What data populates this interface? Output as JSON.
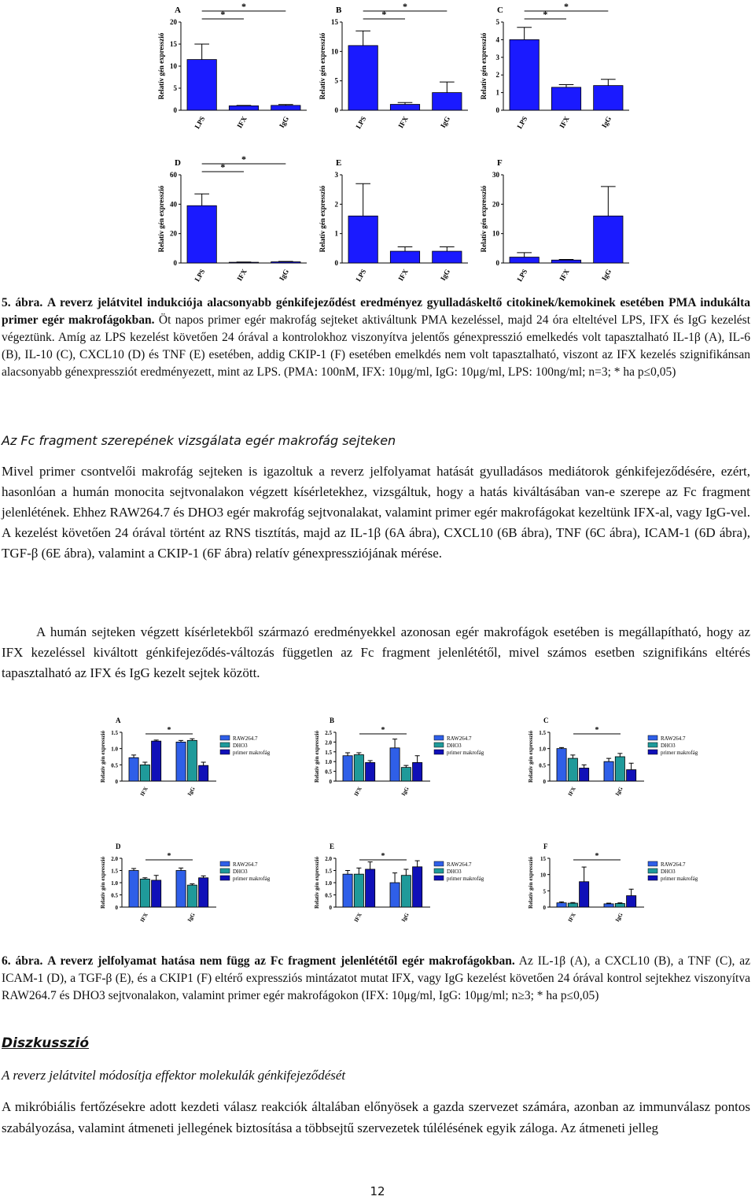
{
  "figure5": {
    "ylabel": "Relatív gén expresszió",
    "sig_mark": "*",
    "color": "#1a1aff",
    "categories": [
      "LPS",
      "IFX",
      "IgG"
    ],
    "panels": [
      {
        "label": "A",
        "ylim": [
          0,
          20
        ],
        "yticks": [
          0,
          5,
          10,
          15,
          20
        ],
        "values": [
          11.5,
          1,
          1.1
        ],
        "errors": [
          3.5,
          0.1,
          0.2
        ]
      },
      {
        "label": "B",
        "ylim": [
          0,
          15
        ],
        "yticks": [
          0,
          5,
          10,
          15
        ],
        "values": [
          11,
          1,
          3
        ],
        "errors": [
          2.5,
          0.3,
          1.8
        ]
      },
      {
        "label": "C",
        "ylim": [
          0,
          5
        ],
        "yticks": [
          0,
          1,
          2,
          3,
          4,
          5
        ],
        "values": [
          4,
          1.3,
          1.4
        ],
        "errors": [
          0.7,
          0.15,
          0.35
        ]
      },
      {
        "label": "D",
        "ylim": [
          0,
          60
        ],
        "yticks": [
          0,
          20,
          40,
          60
        ],
        "values": [
          39,
          0.5,
          0.8
        ],
        "errors": [
          8,
          0.2,
          0.3
        ]
      },
      {
        "label": "E",
        "ylim": [
          0,
          3
        ],
        "yticks": [
          0,
          1,
          2,
          3
        ],
        "values": [
          1.6,
          0.4,
          0.4
        ],
        "errors": [
          1.1,
          0.15,
          0.15
        ]
      },
      {
        "label": "F",
        "ylim": [
          0,
          30
        ],
        "yticks": [
          0,
          10,
          20,
          30
        ],
        "values": [
          2,
          1,
          16
        ],
        "errors": [
          1.5,
          0.2,
          10
        ]
      }
    ]
  },
  "caption5": {
    "label": "5. ábra.",
    "title": "A reverz jelátvitel indukciója alacsonyabb génkifejeződést eredményez gyulladáskeltő citokinek/kemokinek esetében PMA indukálta primer egér makrofágokban.",
    "text": "Öt napos primer egér makrofág sejteket aktiváltunk PMA kezeléssel, majd 24 óra elteltével LPS, IFX és IgG kezelést végeztünk. Amíg az LPS kezelést követően 24 órával a kontrolokhoz viszonyítva jelentős génexpresszió emelkedés volt tapasztalható IL-1β (A), IL-6 (B), IL-10 (C), CXCL10 (D) és TNF (E) esetében, addig CKIP-1 (F) esetében emelkdés nem volt tapasztalható, viszont az IFX kezelés szignifikánsan alacsonyabb génexpressziót eredményezett, mint az LPS. (PMA: 100nM, IFX: 10μg/ml, IgG: 10μg/ml, LPS: 100ng/ml; n=3; * ha p≤0,05)"
  },
  "section_heading": "Az Fc fragment szerepének vizsgálata egér makrofág sejteken",
  "paragraphs": [
    "Mivel primer csontvelői makrofág sejteken is igazoltuk a reverz jelfolyamat hatását gyulladásos mediátorok génkifejeződésére, ezért, hasonlóan a humán monocita sejtvonalakon végzett kísérletekhez, vizsgáltuk, hogy a hatás kiváltásában van-e szerepe az Fc fragment jelenlétének. Ehhez RAW264.7 és DHO3 egér makrofág sejtvonalakat, valamint primer egér makrofágokat kezeltünk IFX-al, vagy IgG-vel. A kezelést követően 24 órával történt az RNS tisztítás, majd az IL-1β (6A ábra), CXCL10 (6B ábra), TNF (6C ábra), ICAM-1 (6D ábra), TGF-β (6E ábra), valamint a CKIP-1 (6F ábra) relatív génexpressziójának mérése.",
    "A humán sejteken végzett kísérletekből származó eredményekkel azonosan egér makrofágok esetében is megállapítható, hogy az IFX kezeléssel kiváltott génkifejeződés-változás független az Fc fragment jelenlététől, mivel számos esetben szignifikáns eltérés tapasztalható az IFX és IgG kezelt sejtek között."
  ],
  "figure6": {
    "ylabel": "Relatív gén expresszió",
    "sig_mark": "*",
    "categories": [
      "IFX",
      "IgG"
    ],
    "series_names": [
      "RAW264.7",
      "DHO3",
      "primer makrofág"
    ],
    "colors": [
      "#2f5fe8",
      "#1f9a9a",
      "#1010b8"
    ],
    "panels": [
      {
        "label": "A",
        "ylim": [
          0,
          1.5
        ],
        "yticks": [
          0,
          0.5,
          {
            "value": 1,
            "label": "1.0"
          },
          1.5
        ],
        "values": [
          [
            0.72,
            1.2
          ],
          [
            0.5,
            1.25
          ],
          [
            1.23,
            0.48
          ]
        ],
        "errors": [
          [
            0.08,
            0.05
          ],
          [
            0.08,
            0.05
          ],
          [
            0.03,
            0.1
          ]
        ]
      },
      {
        "label": "B",
        "ylim": [
          0,
          2.5
        ],
        "yticks": [
          0,
          0.5,
          {
            "value": 1,
            "label": "1.0"
          },
          1.5,
          {
            "value": 2,
            "label": "2.0"
          },
          2.5
        ],
        "values": [
          [
            1.3,
            1.7
          ],
          [
            1.35,
            0.7
          ],
          [
            0.95,
            0.95
          ]
        ],
        "errors": [
          [
            0.15,
            0.45
          ],
          [
            0.1,
            0.1
          ],
          [
            0.1,
            0.35
          ]
        ]
      },
      {
        "label": "C",
        "ylim": [
          0,
          1.5
        ],
        "yticks": [
          0,
          0.5,
          {
            "value": 1,
            "label": "1.0"
          },
          1.5
        ],
        "values": [
          [
            1.0,
            0.6
          ],
          [
            0.7,
            0.75
          ],
          [
            0.4,
            0.35
          ]
        ],
        "errors": [
          [
            0.03,
            0.1
          ],
          [
            0.1,
            0.1
          ],
          [
            0.1,
            0.2
          ]
        ]
      },
      {
        "label": "D",
        "ylim": [
          0,
          2
        ],
        "yticks": [
          0,
          0.5,
          {
            "value": 1,
            "label": "1.0"
          },
          1.5,
          {
            "value": 2,
            "label": "2.0"
          }
        ],
        "values": [
          [
            1.5,
            1.5
          ],
          [
            1.15,
            0.9
          ],
          [
            1.1,
            1.2
          ]
        ],
        "errors": [
          [
            0.08,
            0.1
          ],
          [
            0.05,
            0.05
          ],
          [
            0.2,
            0.08
          ]
        ]
      },
      {
        "label": "E",
        "ylim": [
          0,
          2
        ],
        "yticks": [
          0,
          0.5,
          {
            "value": 1,
            "label": "1.0"
          },
          1.5,
          {
            "value": 2,
            "label": "2.0"
          }
        ],
        "values": [
          [
            1.35,
            1.0
          ],
          [
            1.35,
            1.3
          ],
          [
            1.55,
            1.65
          ]
        ],
        "errors": [
          [
            0.15,
            0.4
          ],
          [
            0.25,
            0.25
          ],
          [
            0.3,
            0.25
          ]
        ]
      },
      {
        "label": "F",
        "ylim": [
          0,
          15
        ],
        "yticks": [
          0,
          5,
          10,
          15
        ],
        "values": [
          [
            1.3,
            1.0
          ],
          [
            1.2,
            1.1
          ],
          [
            7.8,
            3.5
          ]
        ],
        "errors": [
          [
            0.3,
            0.2
          ],
          [
            0.2,
            0.2
          ],
          [
            4.5,
            2
          ]
        ]
      }
    ]
  },
  "caption6": {
    "label": "6. ábra.",
    "title": "A reverz jelfolyamat hatása nem függ az Fc fragment jelenlététől egér makrofágokban.",
    "text": "Az IL-1β (A), a CXCL10 (B), a TNF (C), az ICAM-1 (D), a TGF-β (E), és a CKIP1 (F) eltérő expressziós mintázatot mutat IFX, vagy IgG kezelést követően 24 órával kontrol sejtekhez viszonyítva RAW264.7 és DHO3 sejtvonalakon, valamint primer egér makrofágokon (IFX: 10μg/ml, IgG: 10μg/ml; n≥3; * ha p≤0,05)"
  },
  "discussion_heading": "Diszkusszió",
  "discussion_subheading": "A reverz jelátvitel módosítja effektor molekulák génkifejeződését",
  "discussion_paragraph": "A mikróbiális fertőzésekre adott kezdeti válasz reakciók általában előnyösek a gazda szervezet számára, azonban az immunválasz pontos szabályozása, valamint átmeneti jellegének biztosítása a többsejtű szervezetek túlélésének egyik záloga. Az átmeneti jelleg",
  "page_number": "12"
}
